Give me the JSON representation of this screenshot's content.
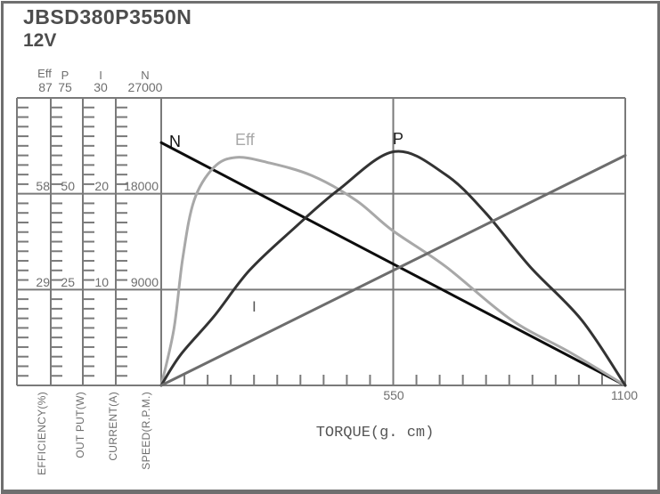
{
  "title": {
    "model": "JBSD380P3550N",
    "voltage": "12V"
  },
  "colors": {
    "frame": "#6f6f6f",
    "grid": "#7a7a7a",
    "text": "#6e6e6e",
    "title_text": "#4d4d4d"
  },
  "chart_data": {
    "type": "line",
    "title": "JBSD380P3550N 12V motor performance curves",
    "xlabel": "TORQUE(g. cm)",
    "x_axis": {
      "min": 0,
      "max": 1100,
      "tick_step": 55,
      "labels": {
        "mid": "550",
        "max": "1100"
      }
    },
    "grid": "major thirds on y, mid line on x",
    "scales": [
      {
        "unit": "Eff",
        "max": 87,
        "ticks": [
          "87",
          "58",
          "29"
        ],
        "footer": "EFFICIENCY(%)"
      },
      {
        "unit": "P",
        "max": 75,
        "ticks": [
          "75",
          "50",
          "25"
        ],
        "footer": "OUT PUT(W)"
      },
      {
        "unit": "I",
        "max": 30,
        "ticks": [
          "30",
          "20",
          "10"
        ],
        "footer": "CURRENT(A)"
      },
      {
        "unit": "N",
        "max": 27000,
        "ticks": [
          "27000",
          "18000",
          "9000"
        ],
        "footer": "SPEED(R.P.M.)"
      }
    ],
    "series": [
      {
        "name": "N",
        "axis_unit": "SPEED(R.P.M.)",
        "axis_max": 27000,
        "color": "#0d0d0d",
        "label_color": "#111111",
        "points": [
          [
            0,
            22800
          ],
          [
            1100,
            0
          ]
        ]
      },
      {
        "name": "Eff",
        "axis_unit": "EFFICIENCY(%)",
        "axis_max": 87,
        "color": "#a8a8a8",
        "label_color": "#a8a8a8",
        "points": [
          [
            0,
            0
          ],
          [
            30,
            17
          ],
          [
            51,
            38.5
          ],
          [
            78,
            56
          ],
          [
            125,
            66
          ],
          [
            177,
            69
          ],
          [
            251,
            67.5
          ],
          [
            357,
            63.5
          ],
          [
            462,
            56
          ],
          [
            547,
            47
          ],
          [
            674,
            36
          ],
          [
            828,
            20
          ],
          [
            969,
            10
          ],
          [
            1100,
            0
          ]
        ]
      },
      {
        "name": "P",
        "axis_unit": "OUT PUT(W)",
        "axis_max": 75,
        "color": "#333333",
        "label_color": "#222222",
        "points": [
          [
            0,
            0
          ],
          [
            46,
            8
          ],
          [
            125,
            18
          ],
          [
            209,
            30
          ],
          [
            315,
            41
          ],
          [
            420,
            51
          ],
          [
            553,
            61
          ],
          [
            674,
            55
          ],
          [
            769,
            45
          ],
          [
            874,
            31
          ],
          [
            997,
            17
          ],
          [
            1100,
            0
          ]
        ]
      },
      {
        "name": "I",
        "axis_unit": "CURRENT(A)",
        "axis_max": 30,
        "color": "#6d6d6d",
        "label_color": "#555555",
        "points": [
          [
            0,
            0
          ],
          [
            1100,
            24
          ]
        ]
      }
    ]
  }
}
